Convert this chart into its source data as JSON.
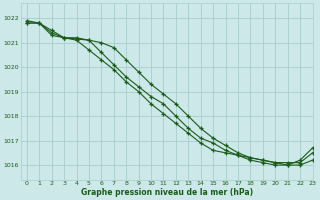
{
  "title": "Graphe pression niveau de la mer (hPa)",
  "bg_color": "#cce8e8",
  "grid_color": "#aacccc",
  "line_color": "#1a5c1a",
  "xlim": [
    -0.5,
    23
  ],
  "ylim": [
    1015.4,
    1022.6
  ],
  "yticks": [
    1016,
    1017,
    1018,
    1019,
    1020,
    1021,
    1022
  ],
  "xticks": [
    0,
    1,
    2,
    3,
    4,
    5,
    6,
    7,
    8,
    9,
    10,
    11,
    12,
    13,
    14,
    15,
    16,
    17,
    18,
    19,
    20,
    21,
    22,
    23
  ],
  "line1_x": [
    0,
    1,
    2,
    3,
    4,
    5,
    6,
    7,
    8,
    9,
    10,
    11,
    12,
    13,
    14,
    15,
    16,
    17,
    18,
    19,
    20,
    21,
    22,
    23
  ],
  "line1_y": [
    1021.8,
    1021.8,
    1021.5,
    1021.2,
    1021.2,
    1021.1,
    1021.0,
    1020.8,
    1020.3,
    1019.8,
    1019.3,
    1018.9,
    1018.5,
    1018.0,
    1017.5,
    1017.1,
    1016.8,
    1016.5,
    1016.3,
    1016.2,
    1016.1,
    1016.1,
    1016.1,
    1016.5
  ],
  "line2_x": [
    0,
    1,
    2,
    3,
    4,
    5,
    6,
    7,
    8,
    9,
    10,
    11,
    12,
    13,
    14,
    15,
    16,
    17,
    18,
    19,
    20,
    21,
    22,
    23
  ],
  "line2_y": [
    1021.8,
    1021.8,
    1021.4,
    1021.2,
    1021.15,
    1021.1,
    1020.6,
    1020.1,
    1019.6,
    1019.2,
    1018.8,
    1018.5,
    1018.0,
    1017.5,
    1017.1,
    1016.9,
    1016.6,
    1016.4,
    1016.2,
    1016.1,
    1016.0,
    1016.0,
    1016.0,
    1016.2
  ],
  "line3_x": [
    0,
    1,
    2,
    3,
    4,
    5,
    6,
    7,
    8,
    9,
    10,
    11,
    12,
    13,
    14,
    15,
    16,
    17,
    18,
    19,
    20,
    21,
    22,
    23
  ],
  "line3_y": [
    1021.9,
    1021.8,
    1021.3,
    1021.2,
    1021.1,
    1020.7,
    1020.3,
    1019.9,
    1019.4,
    1019.0,
    1018.5,
    1018.1,
    1017.7,
    1017.3,
    1016.9,
    1016.6,
    1016.5,
    1016.4,
    1016.3,
    1016.2,
    1016.1,
    1016.0,
    1016.2,
    1016.7
  ]
}
